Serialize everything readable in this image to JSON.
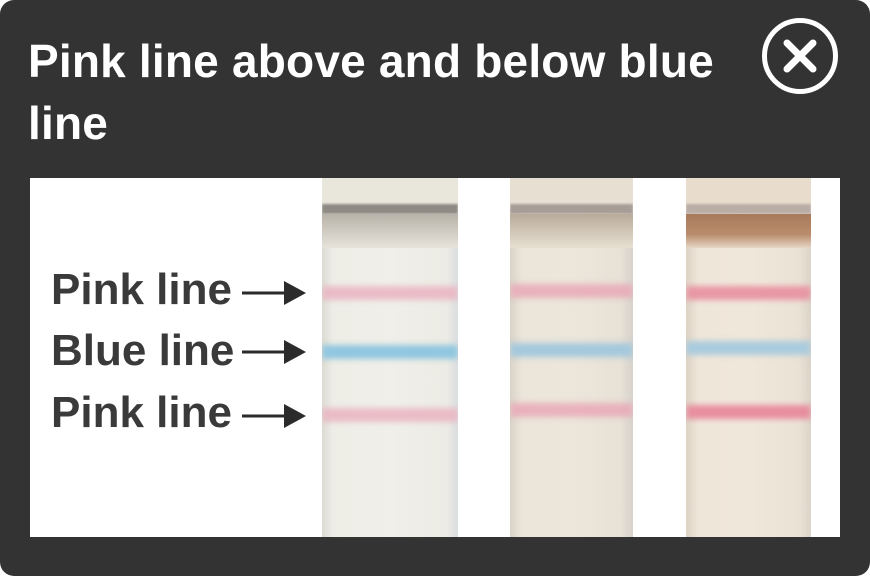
{
  "dialog": {
    "title": "Pink line above and below blue line",
    "close_label": "Close"
  },
  "figure": {
    "labels": {
      "pink_top": "Pink line",
      "blue": "Blue line",
      "pink_bottom": "Pink line"
    },
    "strip_count": 3
  },
  "colors": {
    "dialog_bg": "#333333",
    "title_text": "#ffffff",
    "label_text": "#3a3a3a",
    "pink_line": "#e8a3b4",
    "blue_line": "#93c3dc"
  }
}
